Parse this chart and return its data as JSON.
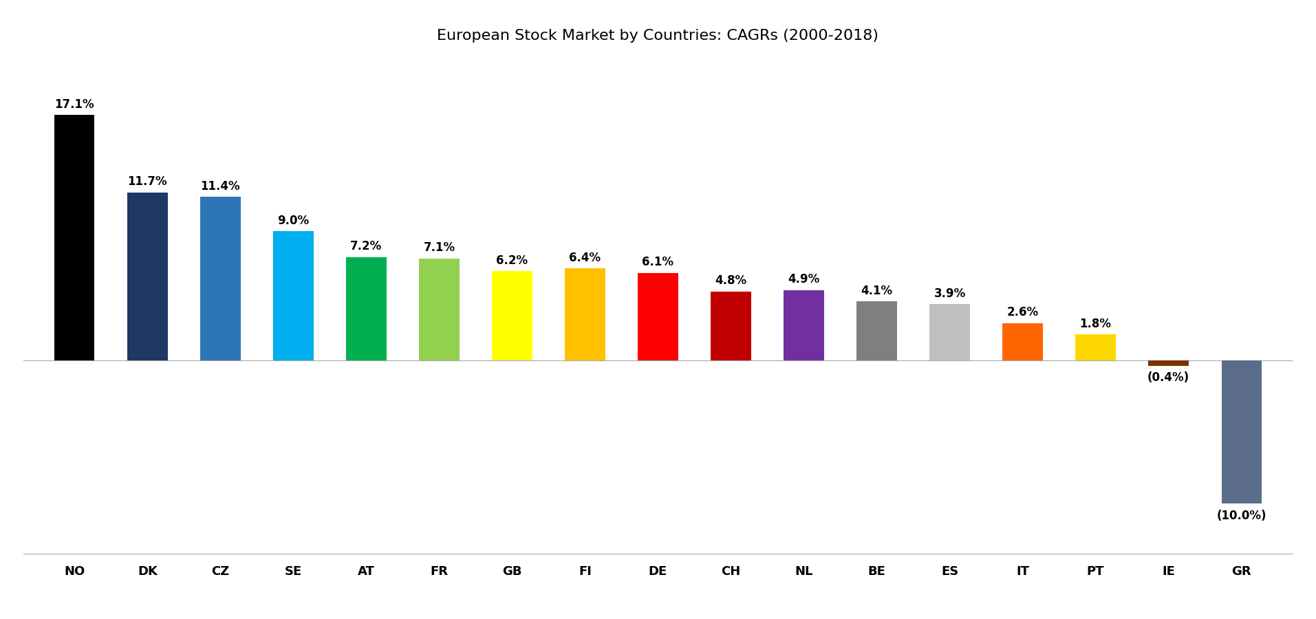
{
  "title": "European Stock Market by Countries: CAGRs (2000-2018)",
  "categories": [
    "NO",
    "DK",
    "CZ",
    "SE",
    "AT",
    "FR",
    "GB",
    "FI",
    "DE",
    "CH",
    "NL",
    "BE",
    "ES",
    "IT",
    "PT",
    "IE",
    "GR"
  ],
  "values": [
    17.1,
    11.7,
    11.4,
    9.0,
    7.2,
    7.1,
    6.2,
    6.4,
    6.1,
    4.8,
    4.9,
    4.1,
    3.9,
    2.6,
    1.8,
    -0.4,
    -10.0
  ],
  "colors": [
    "#000000",
    "#1F3864",
    "#2E75B6",
    "#00B0F0",
    "#00B050",
    "#92D050",
    "#FFFF00",
    "#FFC000",
    "#FF0000",
    "#C00000",
    "#7030A0",
    "#7F7F7F",
    "#BFBFBF",
    "#FF6600",
    "#FFD700",
    "#7B3300",
    "#5B6B8A"
  ],
  "labels": [
    "17.1%",
    "11.7%",
    "11.4%",
    "9.0%",
    "7.2%",
    "7.1%",
    "6.2%",
    "6.4%",
    "6.1%",
    "4.8%",
    "4.9%",
    "4.1%",
    "3.9%",
    "2.6%",
    "1.8%",
    "(0.4%)",
    "(10.0%)"
  ],
  "ylim": [
    -13.5,
    21.0
  ],
  "title_fontsize": 16,
  "label_fontsize": 12,
  "tick_fontsize": 13,
  "background_color": "#FFFFFF",
  "bar_width": 0.55
}
